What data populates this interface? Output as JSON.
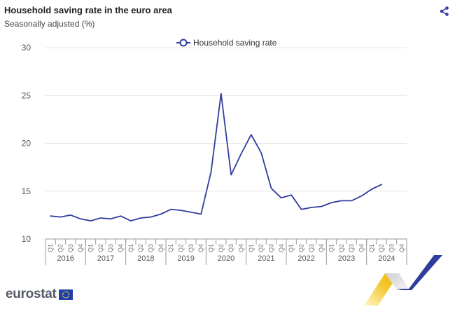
{
  "header": {
    "title": "Household saving rate in the euro area",
    "subtitle": "Seasonally adjusted (%)"
  },
  "icons": {
    "share": "share-icon"
  },
  "brand": {
    "name": "eurostat"
  },
  "colors": {
    "series": "#2f3d9c",
    "grid": "#e4e4e4",
    "axis": "#999999",
    "text": "#555555"
  },
  "chart_data": {
    "type": "line",
    "ylim": [
      10,
      30
    ],
    "yticks": [
      "10",
      "15",
      "20",
      "25",
      "30"
    ],
    "grid": true,
    "legend_position": "top-center",
    "quarter_labels": [
      "Q1",
      "Q2",
      "Q3",
      "Q4"
    ],
    "years": [
      "2016",
      "2017",
      "2018",
      "2019",
      "2020",
      "2021",
      "2022",
      "2023",
      "2024"
    ],
    "series": [
      {
        "name": "Household saving rate",
        "values": [
          12.4,
          12.3,
          12.5,
          12.1,
          11.9,
          12.2,
          12.1,
          12.4,
          11.9,
          12.2,
          12.3,
          12.6,
          13.1,
          13.0,
          12.8,
          12.6,
          17.0,
          25.2,
          16.7,
          18.9,
          20.9,
          19.0,
          15.3,
          14.3,
          14.6,
          13.1,
          13.3,
          13.4,
          13.8,
          14.0,
          14.0,
          14.5,
          15.2,
          15.7
        ]
      }
    ]
  }
}
